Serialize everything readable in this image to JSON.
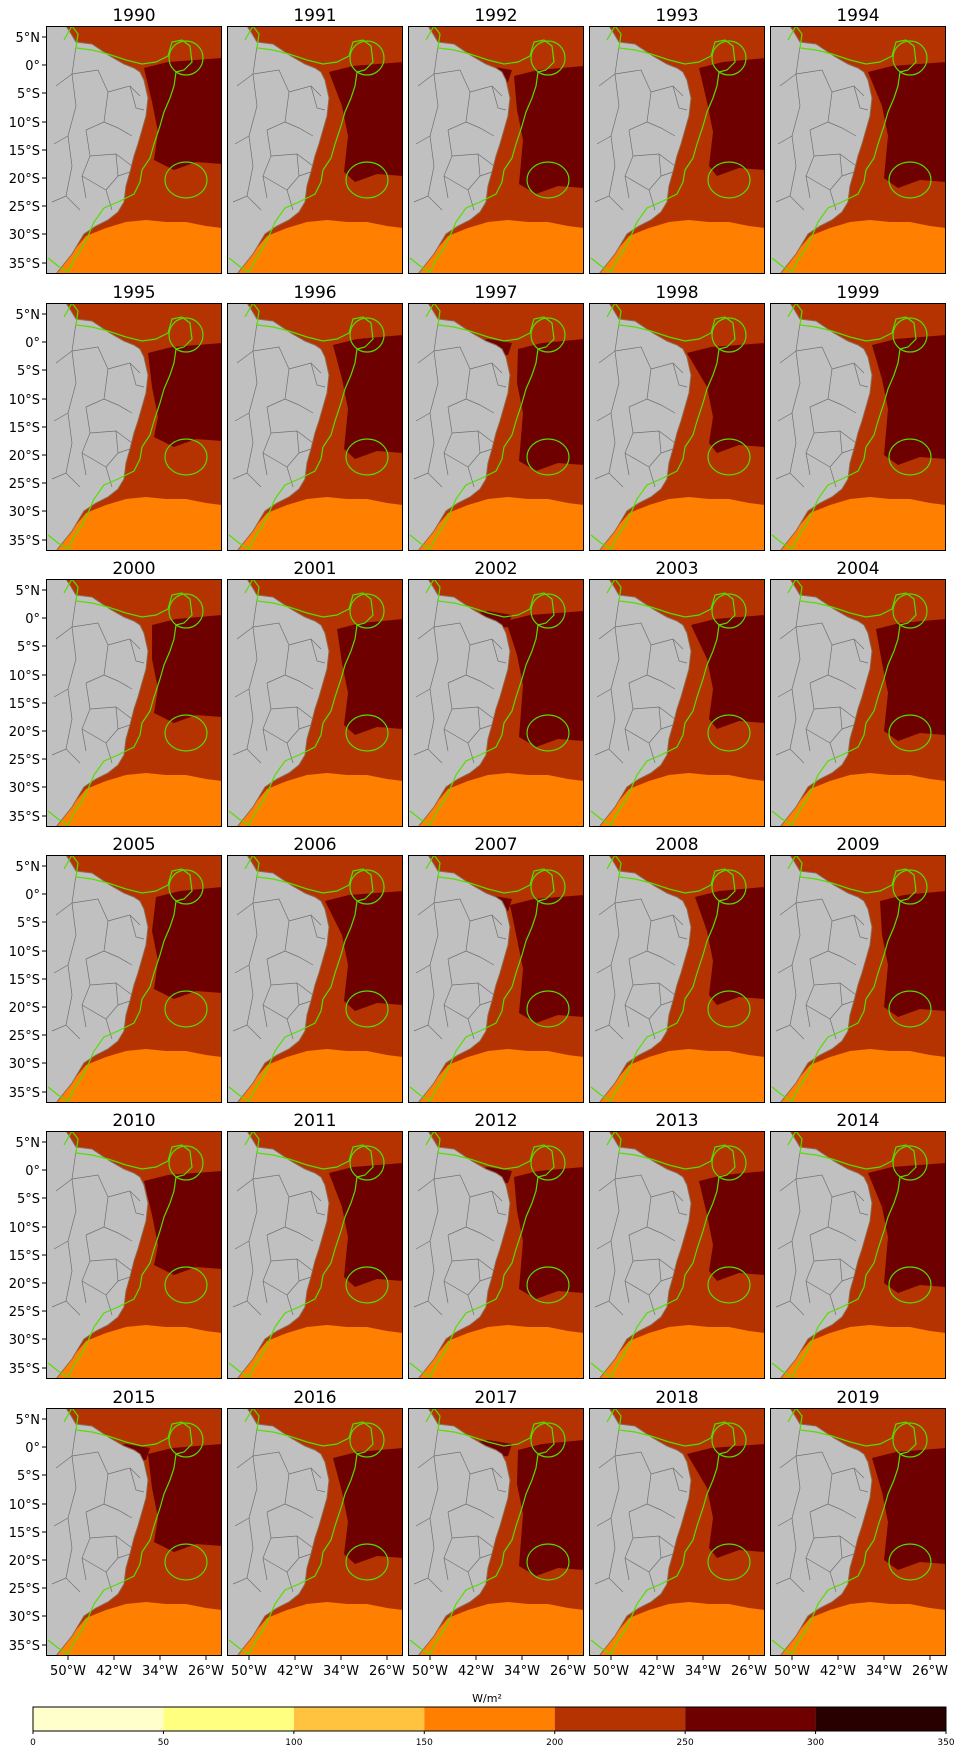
{
  "panels": [
    {
      "year": "1990"
    },
    {
      "year": "1991"
    },
    {
      "year": "1992"
    },
    {
      "year": "1993"
    },
    {
      "year": "1994"
    },
    {
      "year": "1995"
    },
    {
      "year": "1996"
    },
    {
      "year": "1997"
    },
    {
      "year": "1998"
    },
    {
      "year": "1999"
    },
    {
      "year": "2000"
    },
    {
      "year": "2001"
    },
    {
      "year": "2002"
    },
    {
      "year": "2003"
    },
    {
      "year": "2004"
    },
    {
      "year": "2005"
    },
    {
      "year": "2006"
    },
    {
      "year": "2007"
    },
    {
      "year": "2008"
    },
    {
      "year": "2009"
    },
    {
      "year": "2010"
    },
    {
      "year": "2011"
    },
    {
      "year": "2012"
    },
    {
      "year": "2013"
    },
    {
      "year": "2014"
    },
    {
      "year": "2015"
    },
    {
      "year": "2016"
    },
    {
      "year": "2017"
    },
    {
      "year": "2018"
    },
    {
      "year": "2019"
    }
  ],
  "lat_ticks": [
    "5°N",
    "0°",
    "5°S",
    "10°S",
    "15°S",
    "20°S",
    "25°S",
    "30°S",
    "35°S"
  ],
  "lon_ticks": [
    "50°W",
    "42°W",
    "34°W",
    "26°W"
  ],
  "colorbar": {
    "label": "W/m²",
    "tick_labels": [
      "0",
      "50",
      "100",
      "150",
      "200",
      "250",
      "300",
      "350"
    ],
    "bins": [
      {
        "from": 0,
        "to": 50,
        "color": "#ffffcc"
      },
      {
        "from": 50,
        "to": 100,
        "color": "#ffff80"
      },
      {
        "from": 100,
        "to": 150,
        "color": "#ffc340"
      },
      {
        "from": 150,
        "to": 200,
        "color": "#ff7f00"
      },
      {
        "from": 200,
        "to": 250,
        "color": "#b53300"
      },
      {
        "from": 250,
        "to": 300,
        "color": "#6e0000"
      },
      {
        "from": 300,
        "to": 350,
        "color": "#280000"
      }
    ]
  },
  "colors": {
    "land": "#c0c0c0",
    "state_border": "#707070",
    "coastline": "#8a6a50",
    "region_outline": "#55dd00",
    "band_150_200": "#ff7f00",
    "band_200_250": "#b53300",
    "band_250_300": "#6e0000"
  }
}
